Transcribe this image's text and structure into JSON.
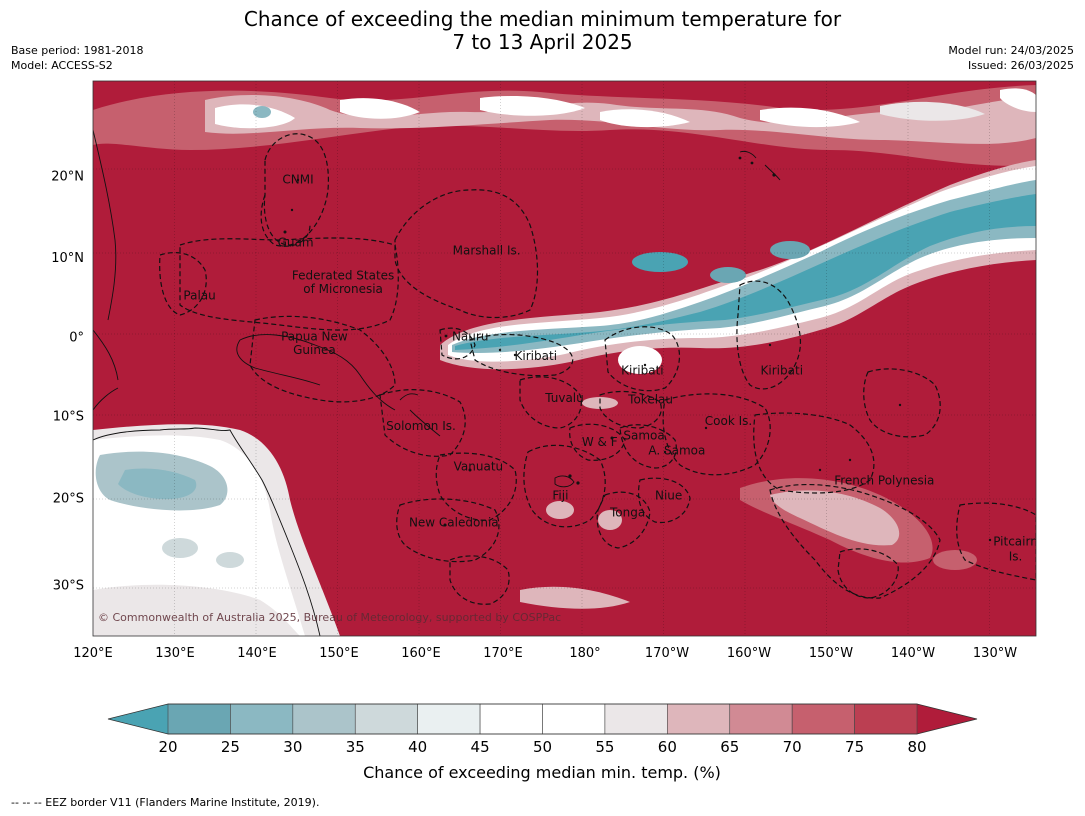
{
  "header": {
    "title_line1": "Chance of exceeding the median minimum temperature for",
    "title_line2": "7 to 13 April 2025",
    "base_period": "Base period: 1981-2018",
    "model": "Model: ACCESS-S2",
    "model_run": "Model run: 24/03/2025",
    "issued": "Issued: 26/03/2025"
  },
  "map": {
    "lon_ticks": [
      "120°E",
      "130°E",
      "140°E",
      "150°E",
      "160°E",
      "170°E",
      "180°",
      "170°W",
      "160°W",
      "150°W",
      "140°W",
      "130°W"
    ],
    "lat_ticks": [
      "20°N",
      "10°N",
      "0°",
      "10°S",
      "20°S",
      "30°S"
    ],
    "copyright": "© Commonwealth of Australia 2025, Bureau of Meteorology, supported by COSPPac",
    "colors": {
      "ocean_high": "#b01c3a",
      "cool": "#4aa3b3",
      "land_outline": "#111111"
    },
    "regions": [
      {
        "name": "CNMI",
        "lon": 145.0,
        "lat": 19.5
      },
      {
        "name": "Guam",
        "lon": 144.7,
        "lat": 11.8
      },
      {
        "name": "Marshall Is.",
        "lon": 168.0,
        "lat": 10.8
      },
      {
        "name": "Federated States",
        "lon": 150.5,
        "lat": 7.7
      },
      {
        "name": "of Micronesia",
        "lon": 150.5,
        "lat": 6.0
      },
      {
        "name": "Palau",
        "lon": 133.0,
        "lat": 5.2
      },
      {
        "name": "Papua New",
        "lon": 147.0,
        "lat": 0.0
      },
      {
        "name": "Guinea",
        "lon": 147.0,
        "lat": -1.7
      },
      {
        "name": "Nauru",
        "lon": 166.0,
        "lat": 0.0
      },
      {
        "name": "Kiribati",
        "lon": 174.0,
        "lat": -2.5
      },
      {
        "name": "Kiribati",
        "lon": -173.0,
        "lat": -4.3
      },
      {
        "name": "Kiribati",
        "lon": -156.0,
        "lat": -4.3
      },
      {
        "name": "Tuvalu",
        "lon": 177.5,
        "lat": -7.8
      },
      {
        "name": "Tokelau",
        "lon": -172.0,
        "lat": -8.0
      },
      {
        "name": "Solomon Is.",
        "lon": 160.0,
        "lat": -11.3
      },
      {
        "name": "Cook Is.",
        "lon": -162.5,
        "lat": -10.7
      },
      {
        "name": "Samoa",
        "lon": -172.8,
        "lat": -12.5
      },
      {
        "name": "W & F",
        "lon": -178.2,
        "lat": -13.3
      },
      {
        "name": "A. Samoa",
        "lon": -168.8,
        "lat": -14.3
      },
      {
        "name": "Vanuatu",
        "lon": 167.0,
        "lat": -16.3
      },
      {
        "name": "French Polynesia",
        "lon": -143.5,
        "lat": -18.0
      },
      {
        "name": "Fiji",
        "lon": 177.0,
        "lat": -19.8
      },
      {
        "name": "Niue",
        "lon": -169.8,
        "lat": -19.8
      },
      {
        "name": "Tonga",
        "lon": -174.8,
        "lat": -21.8
      },
      {
        "name": "New Caledonia",
        "lon": 164.0,
        "lat": -23.0
      },
      {
        "name": "Pitcairn",
        "lon": -127.5,
        "lat": -25.2
      },
      {
        "name": "Is.",
        "lon": -127.5,
        "lat": -26.9
      }
    ]
  },
  "colorbar": {
    "label": "Chance of exceeding median min. temp. (%)",
    "ticks": [
      "20",
      "25",
      "30",
      "35",
      "40",
      "45",
      "50",
      "55",
      "60",
      "65",
      "70",
      "75",
      "80"
    ],
    "colors": [
      "#6aa6b3",
      "#8bb8c2",
      "#abc4ca",
      "#ced9db",
      "#eaf0f1",
      "#ffffff",
      "#ffffff",
      "#ebe7e8",
      "#deb6bb",
      "#d18a94",
      "#c6606e",
      "#bb3f52"
    ],
    "under_color": "#4aa3b3",
    "over_color": "#b01c3a"
  },
  "legend_note": "--  --  -- EEZ border V11 (Flanders Marine Institute, 2019)."
}
